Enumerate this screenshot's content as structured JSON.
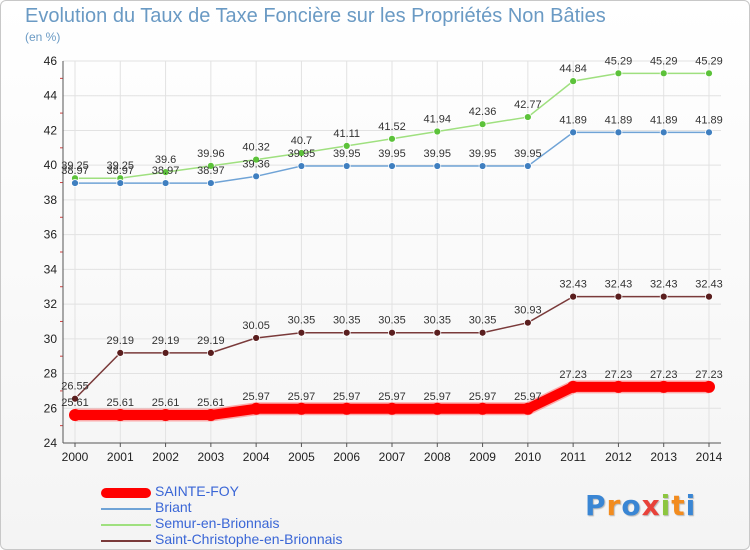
{
  "chart_data": {
    "type": "line",
    "title": "Evolution du Taux de Taxe Foncière sur les Propriétés Non Bâties",
    "subtitle": "(en %)",
    "xlabel": "",
    "ylabel": "",
    "ylim": [
      24,
      46
    ],
    "yticks": [
      24,
      26,
      28,
      30,
      32,
      34,
      36,
      38,
      40,
      42,
      44,
      46
    ],
    "grid": true,
    "legend_position": "bottom-left",
    "x": [
      "2000",
      "2001",
      "2002",
      "2003",
      "2004",
      "2005",
      "2006",
      "2007",
      "2008",
      "2009",
      "2010",
      "2011",
      "2012",
      "2013",
      "2014"
    ],
    "series": [
      {
        "name": "SAINTE-FOY",
        "color": "#ff0000",
        "thick": true,
        "values": [
          25.61,
          25.61,
          25.61,
          25.61,
          25.97,
          25.97,
          25.97,
          25.97,
          25.97,
          25.97,
          25.97,
          27.23,
          27.23,
          27.23,
          27.23
        ],
        "labels": [
          "25.61",
          "25.61",
          "25.61",
          "25.61",
          "25.97",
          "25.97",
          "25.97",
          "25.97",
          "25.97",
          "25.97",
          "25.97",
          "27.23",
          "27.23",
          "27.23",
          "27.23"
        ]
      },
      {
        "name": "Briant",
        "color": "#6fa3d6",
        "marker": "#3f7fc0",
        "values": [
          38.97,
          38.97,
          38.97,
          38.97,
          39.36,
          39.95,
          39.95,
          39.95,
          39.95,
          39.95,
          39.95,
          41.89,
          41.89,
          41.89,
          41.89
        ],
        "labels": [
          "38.97",
          "38.97",
          "38.97",
          "38.97",
          "39.36",
          "39.95",
          "39.95",
          "39.95",
          "39.95",
          "39.95",
          "39.95",
          "41.89",
          "41.89",
          "41.89",
          "41.89"
        ]
      },
      {
        "name": "Semur-en-Brionnais",
        "color": "#9fe07f",
        "marker": "#5cc23a",
        "values": [
          39.25,
          39.25,
          39.6,
          39.96,
          40.32,
          40.7,
          41.11,
          41.52,
          41.94,
          42.36,
          42.77,
          44.84,
          45.29,
          45.29,
          45.29
        ],
        "labels": [
          "39.25",
          "39.25",
          "39.6",
          "39.96",
          "40.32",
          "40.7",
          "41.11",
          "41.52",
          "41.94",
          "42.36",
          "42.77",
          "44.84",
          "45.29",
          "45.29",
          "45.29"
        ]
      },
      {
        "name": "Saint-Christophe-en-Brionnais",
        "color": "#7a3a3a",
        "marker": "#5a1e1e",
        "values": [
          26.55,
          29.19,
          29.19,
          29.19,
          30.05,
          30.35,
          30.35,
          30.35,
          30.35,
          30.35,
          30.93,
          32.43,
          32.43,
          32.43,
          32.43
        ],
        "labels": [
          "26.55",
          "29.19",
          "29.19",
          "29.19",
          "30.05",
          "30.35",
          "30.35",
          "30.35",
          "30.35",
          "30.35",
          "30.93",
          "32.43",
          "32.43",
          "32.43",
          "32.43"
        ]
      }
    ]
  },
  "legend": [
    {
      "label": "SAINTE-FOY",
      "color": "#ff0000"
    },
    {
      "label": "Briant",
      "color": "#6fa3d6"
    },
    {
      "label": "Semur-en-Brionnais",
      "color": "#9fe07f"
    },
    {
      "label": "Saint-Christophe-en-Brionnais",
      "color": "#7a3a3a"
    }
  ],
  "logo": {
    "text": "Proxiti",
    "letters": [
      {
        "ch": "P",
        "color": "#3a86d4"
      },
      {
        "ch": "r",
        "color": "#f28c1f"
      },
      {
        "ch": "o",
        "color": "#3a86d4"
      },
      {
        "ch": "x",
        "color": "#e8423a"
      },
      {
        "ch": "i",
        "color": "#8cc63f"
      },
      {
        "ch": "t",
        "color": "#f28c1f"
      },
      {
        "ch": "i",
        "color": "#3a86d4"
      }
    ]
  }
}
